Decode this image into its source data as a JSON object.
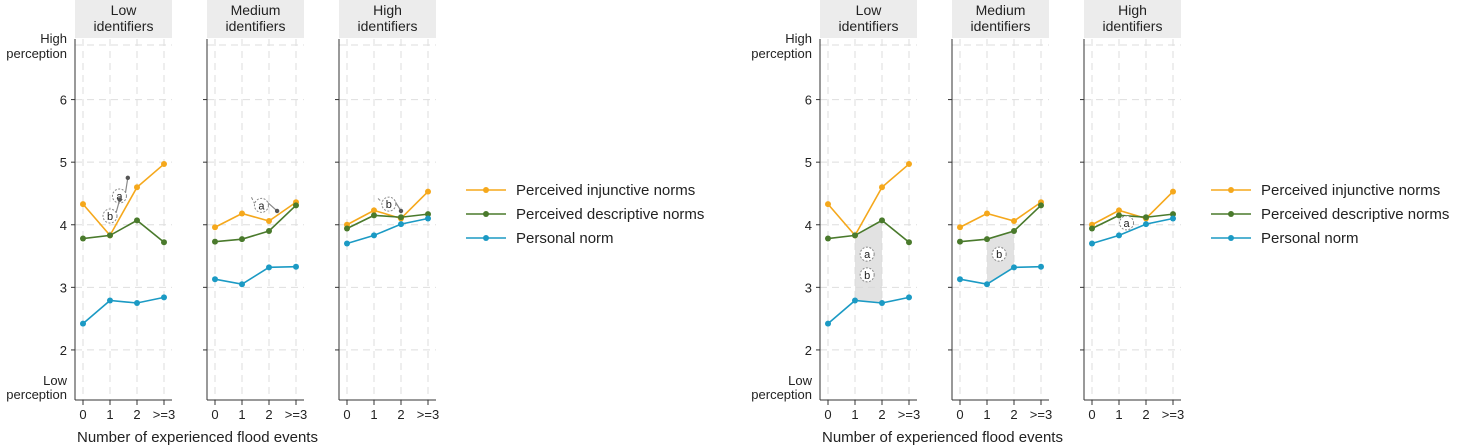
{
  "chart_data": [
    {
      "type": "line",
      "facets": [
        {
          "title": [
            "Low",
            "identifiers"
          ],
          "series": {
            "injunctive": [
              4.33,
              3.83,
              4.6,
              4.97
            ],
            "descriptive": [
              3.78,
              3.83,
              4.07,
              3.72
            ],
            "personal": [
              2.42,
              2.79,
              2.75,
              2.84
            ]
          },
          "markers": [
            {
              "label": "a",
              "x": 1.35,
              "y": 4.46,
              "arrow": [
                1.66,
                4.75
              ]
            },
            {
              "label": "b",
              "x": 1.0,
              "y": 4.14,
              "arrow": [
                1.36,
                4.4
              ]
            }
          ]
        },
        {
          "title": [
            "Medium",
            "identifiers"
          ],
          "series": {
            "injunctive": [
              3.96,
              4.18,
              4.06,
              4.36
            ],
            "descriptive": [
              3.73,
              3.77,
              3.9,
              4.31
            ],
            "personal": [
              3.13,
              3.05,
              3.32,
              3.33
            ]
          },
          "markers": [
            {
              "label": "a",
              "x": 1.72,
              "y": 4.31,
              "arrow": [
                2.3,
                4.22
              ],
              "tail": [
                1.35,
                4.44
              ]
            }
          ]
        },
        {
          "title": [
            "High",
            "identifiers"
          ],
          "series": {
            "injunctive": [
              4.0,
              4.23,
              4.1,
              4.53
            ],
            "descriptive": [
              3.94,
              4.15,
              4.12,
              4.17
            ],
            "personal": [
              3.7,
              3.83,
              4.01,
              4.1
            ]
          },
          "markers": [
            {
              "label": "b",
              "x": 1.55,
              "y": 4.33,
              "arrow": [
                2.0,
                4.22
              ],
              "tail": [
                1.15,
                4.42
              ]
            }
          ]
        }
      ],
      "xlabel": "Number of experienced flood events"
    },
    {
      "type": "line",
      "facets": [
        {
          "title": [
            "Low",
            "identifiers"
          ],
          "series": {
            "injunctive": [
              4.33,
              3.83,
              4.6,
              4.97
            ],
            "descriptive": [
              3.78,
              3.83,
              4.07,
              3.72
            ],
            "personal": [
              2.42,
              2.79,
              2.75,
              2.84
            ]
          },
          "shade": [
            1,
            2
          ],
          "markers": [
            {
              "label": "a",
              "x": 1.45,
              "y": 3.53
            },
            {
              "label": "b",
              "x": 1.45,
              "y": 3.2
            }
          ]
        },
        {
          "title": [
            "Medium",
            "identifiers"
          ],
          "series": {
            "injunctive": [
              3.96,
              4.18,
              4.06,
              4.36
            ],
            "descriptive": [
              3.73,
              3.77,
              3.9,
              4.31
            ],
            "personal": [
              3.13,
              3.05,
              3.32,
              3.33
            ]
          },
          "shade": [
            1,
            2
          ],
          "markers": [
            {
              "label": "b",
              "x": 1.45,
              "y": 3.53
            }
          ]
        },
        {
          "title": [
            "High",
            "identifiers"
          ],
          "series": {
            "injunctive": [
              4.0,
              4.23,
              4.1,
              4.53
            ],
            "descriptive": [
              3.94,
              4.15,
              4.12,
              4.17
            ],
            "personal": [
              3.7,
              3.83,
              4.01,
              4.1
            ]
          },
          "markers": [
            {
              "label": "a",
              "x": 1.28,
              "y": 4.03
            }
          ]
        }
      ],
      "xlabel": "Number of experienced flood events"
    }
  ],
  "x_ticks": [
    "0",
    "1",
    "2",
    ">=3"
  ],
  "y_ticks": [
    "2",
    "3",
    "4",
    "5",
    "6"
  ],
  "y_top_label": [
    "High",
    "perception"
  ],
  "y_bottom_label": [
    "Low",
    "perception"
  ],
  "ylim": [
    1.2,
    7.0
  ],
  "legend": [
    {
      "key": "injunctive",
      "label": "Perceived injunctive norms",
      "color": "#f5a81c"
    },
    {
      "key": "descriptive",
      "label": "Perceived descriptive norms",
      "color": "#4a7a2c"
    },
    {
      "key": "personal",
      "label": "Personal norm",
      "color": "#1b9ac4"
    }
  ],
  "colors": {
    "grid": "#dedede",
    "axis": "#333333",
    "facet_header": "#ececec",
    "shade": "#d8d8d8",
    "marker": "#888888"
  }
}
